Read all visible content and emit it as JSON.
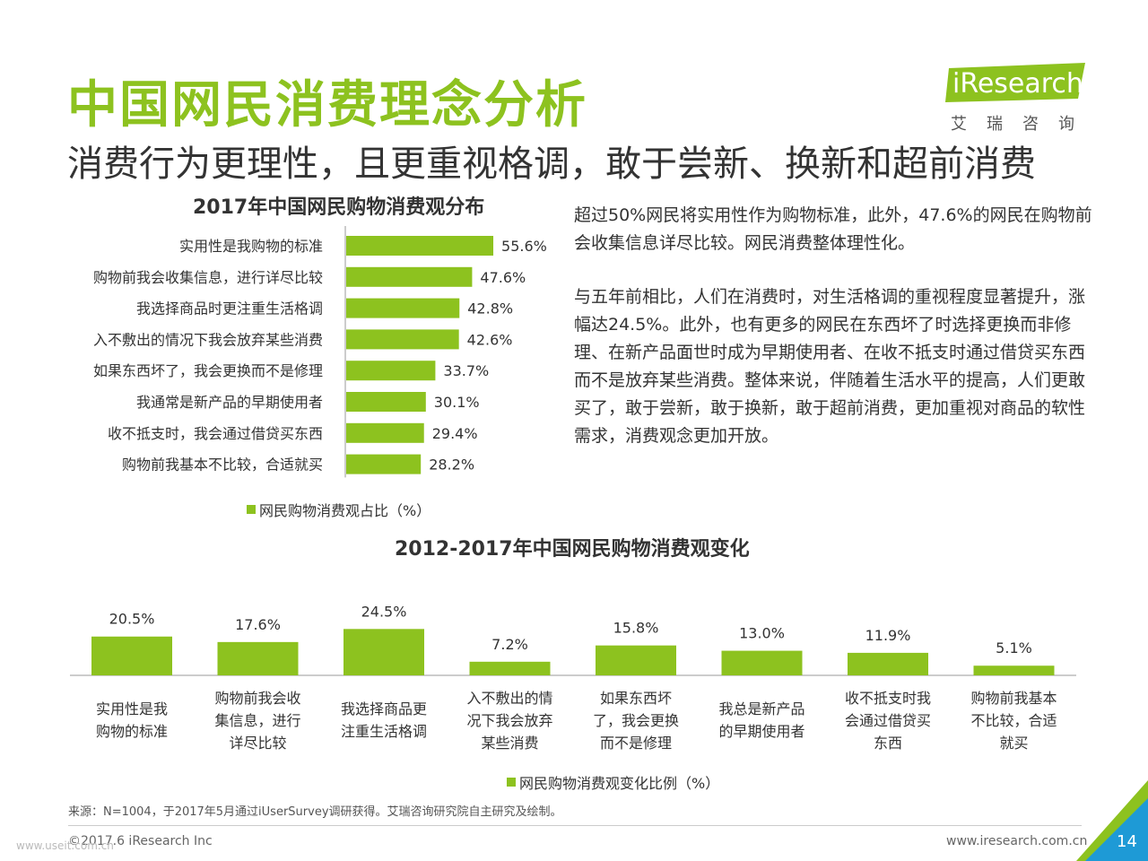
{
  "header": {
    "title": "中国网民消费理念分析",
    "subtitle": "消费行为更理性，且更重视格调，敢于尝新、换新和超前消费"
  },
  "logo": {
    "text": "iResearch",
    "chinese": "艾瑞咨询"
  },
  "colors": {
    "accent": "#8dc21f",
    "text": "#333333",
    "corner_light": "#8dc21f",
    "corner_dark": "#1e9ad6"
  },
  "description": {
    "paragraph1": "超过50%网民将实用性作为购物标准，此外，47.6%的网民在购物前会收集信息详尽比较。网民消费整体理性化。",
    "paragraph2": "与五年前相比，人们在消费时，对生活格调的重视程度显著提升，涨幅达24.5%。此外，也有更多的网民在东西坏了时选择更换而非修理、在新产品面世时成为早期使用者、在收不抵支时通过借贷买东西而不是放弃某些消费。整体来说，伴随着生活水平的提高，人们更敢买了，敢于尝新，敢于换新，敢于超前消费，更加重视对商品的软性需求，消费观念更加开放。"
  },
  "chart_data": [
    {
      "type": "bar",
      "orientation": "horizontal",
      "title": "2017年中国网民购物消费观分布",
      "categories": [
        "实用性是我购物的标准",
        "购物前我会收集信息，进行详尽比较",
        "我选择商品时更注重生活格调",
        "入不敷出的情况下我会放弃某些消费",
        "如果东西坏了，我会更换而不是修理",
        "我通常是新产品的早期使用者",
        "收不抵支时，我会通过借贷买东西",
        "购物前我基本不比较，合适就买"
      ],
      "values": [
        55.6,
        47.6,
        42.8,
        42.6,
        33.7,
        30.1,
        29.4,
        28.2
      ],
      "value_labels": [
        "55.6%",
        "47.6%",
        "42.8%",
        "42.6%",
        "33.7%",
        "30.1%",
        "29.4%",
        "28.2%"
      ],
      "legend": "网民购物消费观占比（%）",
      "legend_position": "bottom",
      "grid": false
    },
    {
      "type": "bar",
      "orientation": "vertical",
      "title": "2012-2017年中国网民购物消费观变化",
      "categories": [
        "实用性是我购物的标准",
        "购物前我会收集信息，进行详尽比较",
        "我选择商品更注重生活格调",
        "入不敷出的情况下我会放弃某些消费",
        "如果东西坏了，我会更换而不是修理",
        "我总是新产品的早期使用者",
        "收不抵支时我会通过借贷买东西",
        "购物前我基本不比较，合适就买"
      ],
      "category_lines": [
        [
          "实用性是我",
          "购物的标准"
        ],
        [
          "购物前我会收",
          "集信息，进行",
          "详尽比较"
        ],
        [
          "我选择商品更",
          "注重生活格调"
        ],
        [
          "入不敷出的情",
          "况下我会放弃",
          "某些消费"
        ],
        [
          "如果东西坏",
          "了，我会更换",
          "而不是修理"
        ],
        [
          "我总是新产品",
          "的早期使用者"
        ],
        [
          "收不抵支时我",
          "会通过借贷买",
          "东西"
        ],
        [
          "购物前我基本",
          "不比较，合适",
          "就买"
        ]
      ],
      "values": [
        20.5,
        17.6,
        24.5,
        7.2,
        15.8,
        13.0,
        11.9,
        5.1
      ],
      "value_labels": [
        "20.5%",
        "17.6%",
        "24.5%",
        "7.2%",
        "15.8%",
        "13.0%",
        "11.9%",
        "5.1%"
      ],
      "legend": "网民购物消费观变化比例（%）",
      "legend_position": "bottom",
      "grid": false
    }
  ],
  "footer": {
    "source": "来源：N=1004，于2017年5月通过iUserSurvey调研获得。艾瑞咨询研究院自主研究及绘制。",
    "copyright": "©2017.6 iResearch Inc",
    "website": "www.iresearch.com.cn",
    "page_number": "14",
    "watermark": "www.useit.com.cn"
  }
}
